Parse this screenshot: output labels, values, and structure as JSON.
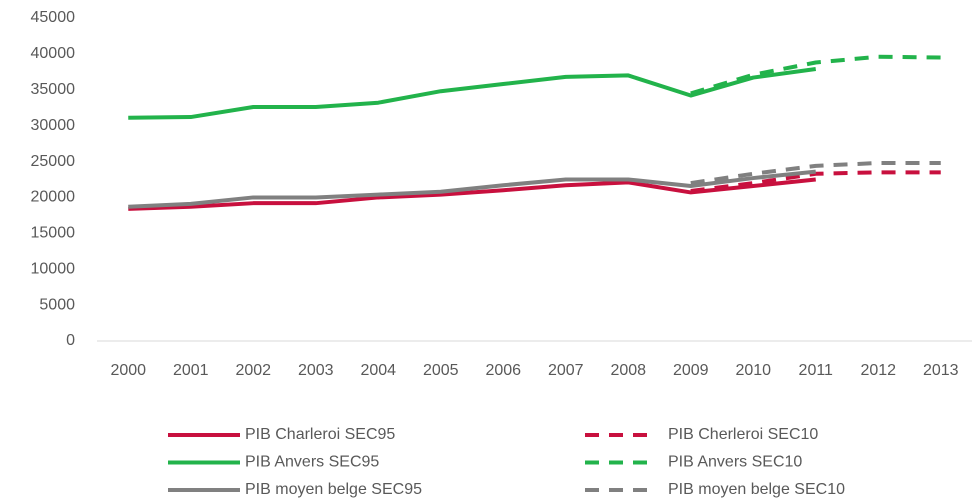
{
  "chart_data": {
    "type": "line",
    "categories": [
      "2000",
      "2001",
      "2002",
      "2003",
      "2004",
      "2005",
      "2006",
      "2007",
      "2008",
      "2009",
      "2010",
      "2011",
      "2012",
      "2013"
    ],
    "series": [
      {
        "name": "PIB Charleroi SEC95",
        "color": "#c8103e",
        "style": "solid",
        "values": [
          18400,
          18700,
          19200,
          19200,
          20000,
          20400,
          21000,
          21700,
          22100,
          20700,
          21600,
          22500,
          null,
          null
        ]
      },
      {
        "name": "PIB Cherleroi SEC10",
        "color": "#c8103e",
        "style": "dashed",
        "values": [
          null,
          null,
          null,
          null,
          null,
          null,
          null,
          null,
          null,
          20900,
          22000,
          23300,
          23500,
          23500
        ]
      },
      {
        "name": "PIB Anvers SEC95",
        "color": "#22b34b",
        "style": "solid",
        "values": [
          31100,
          31200,
          32600,
          32600,
          33200,
          34800,
          35800,
          36800,
          37000,
          34200,
          36700,
          37900,
          null,
          null
        ]
      },
      {
        "name": "PIB Anvers SEC10",
        "color": "#22b34b",
        "style": "dashed",
        "values": [
          null,
          null,
          null,
          null,
          null,
          null,
          null,
          null,
          null,
          34500,
          37100,
          38800,
          39600,
          39500
        ]
      },
      {
        "name": "PIB moyen belge SEC95",
        "color": "#808080",
        "style": "solid",
        "values": [
          18700,
          19100,
          20000,
          20000,
          20400,
          20800,
          21700,
          22500,
          22500,
          21600,
          22700,
          23600,
          null,
          null
        ]
      },
      {
        "name": "PIB moyen belge SEC10",
        "color": "#808080",
        "style": "dashed",
        "values": [
          null,
          null,
          null,
          null,
          null,
          null,
          null,
          null,
          null,
          22000,
          23300,
          24400,
          24800,
          24800
        ]
      }
    ],
    "ylim": [
      0,
      45000
    ],
    "yticks": [
      0,
      5000,
      10000,
      15000,
      20000,
      25000,
      30000,
      35000,
      40000,
      45000
    ],
    "grid": false,
    "legend": "bottom"
  }
}
